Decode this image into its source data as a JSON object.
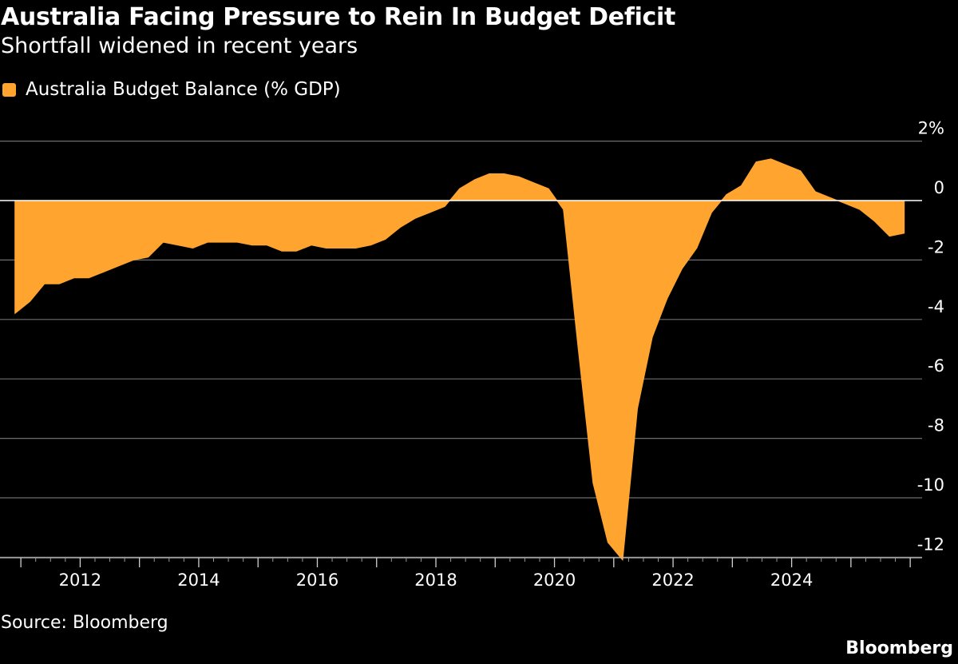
{
  "title": "Australia Facing Pressure to Rein In Budget Deficit",
  "subtitle": "Shortfall widened in recent years",
  "legend": {
    "label": "Australia Budget Balance (% GDP)"
  },
  "source": "Source: Bloomberg",
  "brand": "Bloomberg",
  "colors": {
    "series": "#FFA42E",
    "background": "#000000",
    "text": "#ffffff",
    "grid": "#6e6e6e",
    "zero": "#ffffff"
  },
  "chart_data": {
    "type": "area",
    "title": "Australia Facing Pressure to Rein In Budget Deficit",
    "subtitle": "Shortfall widened in recent years",
    "ylabel": "",
    "ylim": [
      -12.5,
      2
    ],
    "y_ticks": [
      2,
      0,
      -2,
      -4,
      -6,
      -8,
      -10,
      -12
    ],
    "y_tick_labels": [
      "2%",
      "0",
      "-2",
      "-4",
      "-6",
      "-8",
      "-10",
      "-12"
    ],
    "xlim": [
      2010.85,
      2026.2
    ],
    "x_ticks": [
      2012,
      2014,
      2016,
      2018,
      2020,
      2022,
      2024
    ],
    "x_tick_labels": [
      "2012",
      "2014",
      "2016",
      "2018",
      "2020",
      "2022",
      "2024"
    ],
    "grid": true,
    "legend_position": "top-left",
    "series": [
      {
        "name": "Australia Budget Balance (% GDP)",
        "x": [
          2010.9,
          2011.15,
          2011.4,
          2011.65,
          2011.9,
          2012.15,
          2012.4,
          2012.65,
          2012.9,
          2013.15,
          2013.4,
          2013.65,
          2013.9,
          2014.15,
          2014.4,
          2014.65,
          2014.9,
          2015.15,
          2015.4,
          2015.65,
          2015.9,
          2016.15,
          2016.4,
          2016.65,
          2016.9,
          2017.15,
          2017.4,
          2017.65,
          2017.9,
          2018.15,
          2018.4,
          2018.65,
          2018.9,
          2019.15,
          2019.4,
          2019.65,
          2019.9,
          2020.15,
          2020.4,
          2020.65,
          2020.9,
          2021.15,
          2021.4,
          2021.65,
          2021.9,
          2022.15,
          2022.4,
          2022.65,
          2022.9,
          2023.15,
          2023.4,
          2023.65,
          2023.9,
          2024.15,
          2024.4,
          2024.65,
          2024.9,
          2025.15,
          2025.4,
          2025.65,
          2025.9
        ],
        "values": [
          -3.8,
          -3.4,
          -2.8,
          -2.8,
          -2.6,
          -2.6,
          -2.4,
          -2.2,
          -2.0,
          -1.9,
          -1.4,
          -1.5,
          -1.6,
          -1.4,
          -1.4,
          -1.4,
          -1.5,
          -1.5,
          -1.7,
          -1.7,
          -1.5,
          -1.6,
          -1.6,
          -1.6,
          -1.5,
          -1.3,
          -0.9,
          -0.6,
          -0.4,
          -0.2,
          0.4,
          0.7,
          0.9,
          0.9,
          0.8,
          0.6,
          0.4,
          -0.3,
          -5.0,
          -9.5,
          -11.5,
          -12.1,
          -7.0,
          -4.6,
          -3.3,
          -2.3,
          -1.6,
          -0.4,
          0.2,
          0.5,
          1.3,
          1.4,
          1.2,
          1.0,
          0.3,
          0.1,
          -0.1,
          -0.3,
          -0.7,
          -1.2,
          -1.1
        ]
      }
    ]
  }
}
